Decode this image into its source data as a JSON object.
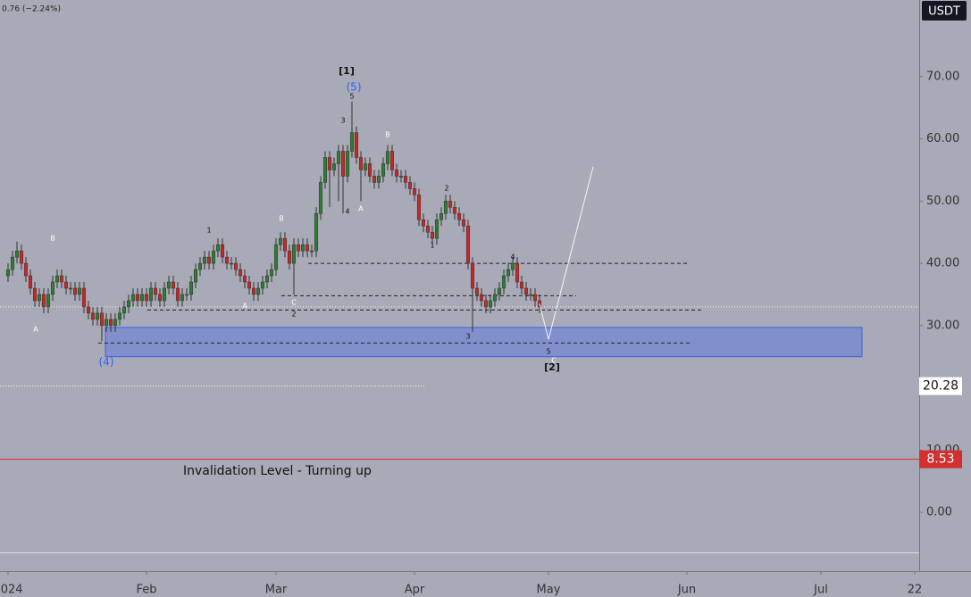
{
  "chart_data": {
    "type": "candlestick",
    "header": "0.76 (−2.24%)",
    "currency": "USDT",
    "open": [
      38,
      39,
      41,
      42,
      40,
      38,
      36,
      34,
      35,
      33,
      35,
      37,
      38,
      37,
      36,
      36,
      35,
      36,
      33,
      32,
      31,
      32,
      30,
      31,
      30,
      31,
      32,
      33,
      34,
      35,
      34,
      35,
      34,
      36,
      35,
      34,
      36,
      37,
      36,
      34,
      35,
      35,
      37,
      39,
      40,
      41,
      40,
      42,
      43,
      41,
      40,
      40,
      39,
      38,
      37,
      36,
      35,
      36,
      37,
      38,
      39,
      43,
      44,
      42,
      40,
      43,
      42,
      43,
      42,
      42,
      48,
      53,
      57,
      55,
      56,
      58,
      54,
      58,
      61,
      57,
      55,
      56,
      54,
      53,
      54,
      56,
      58,
      55,
      54,
      54,
      53,
      52,
      51,
      47,
      46,
      45,
      44,
      47,
      48,
      50,
      49,
      48,
      47,
      46,
      40,
      36,
      35,
      34,
      33,
      34,
      35,
      36,
      38,
      39,
      40,
      37,
      36,
      35,
      35,
      34
    ],
    "high": [
      40,
      42,
      43.5,
      43,
      41,
      39,
      37,
      36,
      36,
      36,
      38,
      39,
      39,
      38,
      37,
      37,
      37,
      37,
      34,
      33,
      33,
      33,
      32,
      32,
      32,
      33,
      34,
      35,
      36,
      36,
      36,
      36,
      37,
      37,
      36,
      37,
      38,
      38,
      37,
      36,
      36,
      38,
      40,
      41,
      42,
      42,
      43,
      44,
      44,
      42,
      41,
      41,
      40,
      39,
      38,
      37,
      37,
      38,
      39,
      40,
      44,
      45,
      45,
      43,
      44,
      44,
      44,
      44,
      43,
      49,
      54,
      58,
      58,
      57,
      59,
      59,
      59,
      66,
      62,
      58,
      57,
      57,
      55,
      55,
      57,
      59,
      59,
      56,
      55,
      55,
      54,
      53,
      52,
      48,
      47,
      46,
      48,
      49,
      51,
      51,
      50,
      49,
      48,
      47,
      41,
      37,
      36,
      35,
      35,
      36,
      37,
      39,
      40,
      41,
      41,
      38,
      37,
      36,
      36,
      35
    ],
    "low": [
      37,
      38,
      40,
      39,
      37,
      35,
      33,
      33,
      32,
      32,
      34,
      36,
      36,
      35,
      35,
      34,
      34,
      32,
      31,
      30,
      30,
      27.5,
      29,
      29,
      29,
      30,
      31,
      32,
      33,
      33,
      33,
      33,
      33,
      34,
      33,
      33,
      35,
      35,
      33,
      33,
      34,
      34,
      36,
      38,
      39,
      39,
      39,
      41,
      40,
      39,
      39,
      38,
      37,
      36,
      35,
      34,
      34,
      35,
      36,
      37,
      38,
      42,
      41,
      39,
      35,
      41,
      41,
      41,
      41,
      41,
      47,
      52,
      49,
      54,
      50,
      48,
      53,
      57,
      56,
      50,
      54,
      53,
      52,
      52,
      53,
      55,
      54,
      53,
      53,
      52,
      51,
      50,
      46,
      45,
      44,
      43,
      43,
      46,
      47,
      48,
      47,
      46,
      45,
      39,
      29,
      34,
      33,
      32,
      32,
      33,
      34,
      35,
      37,
      38,
      36,
      35,
      34,
      34,
      33,
      32
    ],
    "close": [
      39,
      41,
      42,
      40,
      38,
      36,
      34,
      35,
      33,
      35,
      37,
      38,
      37,
      36,
      36,
      35,
      36,
      33,
      32,
      31,
      32,
      30,
      31,
      30,
      31,
      32,
      33,
      34,
      35,
      34,
      35,
      34,
      36,
      35,
      34,
      36,
      37,
      36,
      34,
      35,
      35,
      37,
      39,
      40,
      41,
      40,
      42,
      43,
      41,
      40,
      40,
      39,
      38,
      37,
      36,
      35,
      36,
      37,
      38,
      39,
      43,
      44,
      42,
      40,
      43,
      42,
      43,
      42,
      42,
      48,
      53,
      57,
      55,
      56,
      58,
      54,
      58,
      61,
      57,
      55,
      56,
      54,
      53,
      54,
      56,
      58,
      55,
      54,
      54,
      53,
      52,
      51,
      47,
      46,
      45,
      44,
      47,
      48,
      50,
      49,
      48,
      47,
      46,
      40,
      36,
      35,
      34,
      33,
      34,
      35,
      36,
      38,
      39,
      40,
      37,
      36,
      35,
      35,
      34,
      33
    ],
    "up_color": "#2e7d32",
    "down_color": "#c62828",
    "ylim": [
      -13.6,
      82.3
    ],
    "yticks": [
      {
        "value": 0,
        "label": "0.00"
      },
      {
        "value": 10,
        "label": "10.00"
      },
      {
        "value": 20,
        "label": "20.00"
      },
      {
        "value": 30,
        "label": "30.00"
      },
      {
        "value": 40,
        "label": "40.00"
      },
      {
        "value": 50,
        "label": "50.00"
      },
      {
        "value": 60,
        "label": "60.00"
      },
      {
        "value": 70,
        "label": "70.00"
      }
    ],
    "xlim": [
      -1.8,
      204
    ],
    "xticks": [
      {
        "value": 0,
        "label": "2024"
      },
      {
        "value": 31,
        "label": "Feb"
      },
      {
        "value": 60,
        "label": "Mar"
      },
      {
        "value": 91,
        "label": "Apr"
      },
      {
        "value": 121,
        "label": "May"
      },
      {
        "value": 152,
        "label": "Jun"
      },
      {
        "value": 182,
        "label": "Jul"
      },
      {
        "value": 203,
        "label": "22"
      }
    ],
    "price_labels": [
      {
        "value": 20.28,
        "label": "20.28"
      },
      {
        "value": 8.53,
        "label": "8.53"
      }
    ],
    "dashed_levels": [
      40,
      34.8,
      32.5,
      27.2
    ],
    "current_level": 33,
    "zone": [
      25,
      29.7
    ],
    "low_level": -6.5,
    "projection": [
      33.5,
      27.8,
      55.5
    ],
    "annotations": [
      "[1]",
      "(5)",
      "5",
      "3",
      "B",
      "4",
      "A",
      "2",
      "1",
      "4",
      "3",
      "5",
      "C",
      "[2]",
      "(4)",
      "B",
      "A",
      "1",
      "B",
      "A",
      "C",
      "2",
      "Invalidation Level - Turning up"
    ]
  }
}
